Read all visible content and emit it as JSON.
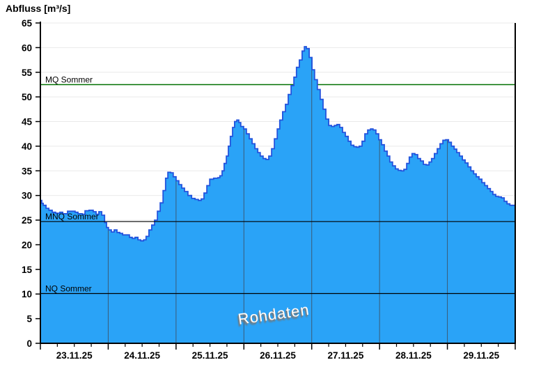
{
  "title": "Abfluss [m³/s]",
  "watermark": "Rohdaten",
  "chart_data": {
    "type": "area",
    "title": "Abfluss [m³/s]",
    "ylabel": "Abfluss [m³/s]",
    "xlabel": "",
    "ylim": [
      0,
      65
    ],
    "y_tick_step": 5,
    "y_ticks": [
      0,
      5,
      10,
      15,
      20,
      25,
      30,
      35,
      40,
      45,
      50,
      55,
      60,
      65
    ],
    "x_day_labels": [
      "23.11.25",
      "24.11.25",
      "25.11.25",
      "26.11.25",
      "27.11.25",
      "28.11.25",
      "29.11.25"
    ],
    "x_range_hours": [
      0,
      168
    ],
    "minor_tick_hours": 6,
    "grid": true,
    "legend_position": "none",
    "series_name": "Rohdaten",
    "reference_lines": [
      {
        "label": "MQ Sommer",
        "value": 52.5,
        "color": "#007000",
        "layer": "below"
      },
      {
        "label": "MNQ Sommer",
        "value": 24.7,
        "color": "#000000",
        "layer": "above"
      },
      {
        "label": "NQ Sommer",
        "value": 10.1,
        "color": "#000000",
        "layer": "above"
      }
    ],
    "colors": {
      "fill": "#2aa3f7",
      "stroke": "#2353dd",
      "grid_horizontal": "#e9e9e9",
      "day_gridline_on_fill": "#3a5a76",
      "axis": "#000000",
      "text": "#000000",
      "watermark_text": "#ffffff"
    },
    "points_hour_value": [
      [
        0,
        29.0
      ],
      [
        0.5,
        28.4
      ],
      [
        1,
        28.0
      ],
      [
        2,
        27.4
      ],
      [
        3,
        27.0
      ],
      [
        4.2,
        26.6
      ],
      [
        5.4,
        26.4
      ],
      [
        6.9,
        26.6
      ],
      [
        7.9,
        26.3
      ],
      [
        9.6,
        26.8
      ],
      [
        11.3,
        26.8
      ],
      [
        12.3,
        26.6
      ],
      [
        13.3,
        26.3
      ],
      [
        14.8,
        26.2
      ],
      [
        15.8,
        26.9
      ],
      [
        17.2,
        27.0
      ],
      [
        18.7,
        26.7
      ],
      [
        19.7,
        26.2
      ],
      [
        20.7,
        26.7
      ],
      [
        21.7,
        26.0
      ],
      [
        22.7,
        24.5
      ],
      [
        23.4,
        23.5
      ],
      [
        24.1,
        23.0
      ],
      [
        25.1,
        22.6
      ],
      [
        26.1,
        23.0
      ],
      [
        27.1,
        22.5
      ],
      [
        28.1,
        22.3
      ],
      [
        29.1,
        22.0
      ],
      [
        30.5,
        22.0
      ],
      [
        31.5,
        21.5
      ],
      [
        32.5,
        21.3
      ],
      [
        33.5,
        21.5
      ],
      [
        34.5,
        21.0
      ],
      [
        35.5,
        20.8
      ],
      [
        36.5,
        21.0
      ],
      [
        37.4,
        21.7
      ],
      [
        38.4,
        23.0
      ],
      [
        39.4,
        24.0
      ],
      [
        40.4,
        25.0
      ],
      [
        41.4,
        26.8
      ],
      [
        42.4,
        28.5
      ],
      [
        43.4,
        31.0
      ],
      [
        44.3,
        33.5
      ],
      [
        45.1,
        34.7
      ],
      [
        46.1,
        34.6
      ],
      [
        47,
        33.8
      ],
      [
        48,
        33.0
      ],
      [
        49,
        32.2
      ],
      [
        50,
        31.5
      ],
      [
        51,
        30.8
      ],
      [
        52.2,
        30.0
      ],
      [
        53.5,
        29.4
      ],
      [
        54.7,
        29.2
      ],
      [
        55.9,
        29.0
      ],
      [
        56.9,
        29.3
      ],
      [
        57.9,
        30.5
      ],
      [
        58.9,
        32.0
      ],
      [
        59.9,
        33.3
      ],
      [
        61.3,
        33.5
      ],
      [
        62.8,
        33.6
      ],
      [
        63.5,
        34.0
      ],
      [
        64.3,
        35.0
      ],
      [
        65,
        36.5
      ],
      [
        65.8,
        38.0
      ],
      [
        66.5,
        40.0
      ],
      [
        67.2,
        42.0
      ],
      [
        68,
        43.8
      ],
      [
        68.7,
        45.0
      ],
      [
        69.5,
        45.3
      ],
      [
        70.2,
        44.8
      ],
      [
        70.9,
        44.0
      ],
      [
        71.9,
        43.5
      ],
      [
        72.9,
        42.5
      ],
      [
        73.9,
        41.5
      ],
      [
        74.9,
        40.5
      ],
      [
        75.9,
        39.5
      ],
      [
        76.9,
        38.7
      ],
      [
        77.8,
        38.0
      ],
      [
        78.8,
        37.5
      ],
      [
        79.8,
        37.3
      ],
      [
        80.8,
        38.0
      ],
      [
        81.8,
        39.5
      ],
      [
        82.8,
        41.5
      ],
      [
        83.8,
        43.5
      ],
      [
        84.7,
        45.3
      ],
      [
        85.7,
        47.0
      ],
      [
        86.7,
        48.5
      ],
      [
        87.7,
        50.5
      ],
      [
        88.7,
        52.3
      ],
      [
        89.7,
        54.0
      ],
      [
        90.6,
        56.0
      ],
      [
        91.6,
        57.5
      ],
      [
        92.6,
        59.3
      ],
      [
        93.4,
        60.2
      ],
      [
        94.1,
        59.8
      ],
      [
        95.1,
        58.0
      ],
      [
        96.1,
        55.5
      ],
      [
        97,
        53.5
      ],
      [
        98,
        51.5
      ],
      [
        99,
        49.5
      ],
      [
        100,
        47.5
      ],
      [
        101,
        45.5
      ],
      [
        102,
        44.2
      ],
      [
        103,
        44.0
      ],
      [
        104,
        44.2
      ],
      [
        104.9,
        44.4
      ],
      [
        105.9,
        43.8
      ],
      [
        106.9,
        42.8
      ],
      [
        107.9,
        42.0
      ],
      [
        108.9,
        41.0
      ],
      [
        109.9,
        40.2
      ],
      [
        110.9,
        39.9
      ],
      [
        111.8,
        39.8
      ],
      [
        112.8,
        40.0
      ],
      [
        113.8,
        41.0
      ],
      [
        114.8,
        42.5
      ],
      [
        115.8,
        43.3
      ],
      [
        116.8,
        43.5
      ],
      [
        117.7,
        43.3
      ],
      [
        118.7,
        42.5
      ],
      [
        119.7,
        41.3
      ],
      [
        120.7,
        40.3
      ],
      [
        121.7,
        39.0
      ],
      [
        122.7,
        38.0
      ],
      [
        123.6,
        36.8
      ],
      [
        124.6,
        36.0
      ],
      [
        125.6,
        35.4
      ],
      [
        126.6,
        35.1
      ],
      [
        127.6,
        35.0
      ],
      [
        128.6,
        35.3
      ],
      [
        129.6,
        36.5
      ],
      [
        130.5,
        37.8
      ],
      [
        131.5,
        38.5
      ],
      [
        132.5,
        38.3
      ],
      [
        133.5,
        37.5
      ],
      [
        134.5,
        37.0
      ],
      [
        135.5,
        36.3
      ],
      [
        136.5,
        36.2
      ],
      [
        137.5,
        36.8
      ],
      [
        138.4,
        37.5
      ],
      [
        139.4,
        38.5
      ],
      [
        140.4,
        39.5
      ],
      [
        141.4,
        40.5
      ],
      [
        142.4,
        41.2
      ],
      [
        143.4,
        41.3
      ],
      [
        144.4,
        40.8
      ],
      [
        145.4,
        40.0
      ],
      [
        146.4,
        39.4
      ],
      [
        147.3,
        38.7
      ],
      [
        148.3,
        38.0
      ],
      [
        149.3,
        37.2
      ],
      [
        150.3,
        36.6
      ],
      [
        151.3,
        35.8
      ],
      [
        152.3,
        35.0
      ],
      [
        153.3,
        34.4
      ],
      [
        154.2,
        33.8
      ],
      [
        155.2,
        33.3
      ],
      [
        156.2,
        32.6
      ],
      [
        157.2,
        32.0
      ],
      [
        158.2,
        31.4
      ],
      [
        159.2,
        30.8
      ],
      [
        160.1,
        30.2
      ],
      [
        161.1,
        29.8
      ],
      [
        162.1,
        29.7
      ],
      [
        163.1,
        29.5
      ],
      [
        164.1,
        28.8
      ],
      [
        165.1,
        28.3
      ],
      [
        166.1,
        28.0
      ],
      [
        167.1,
        28.0
      ],
      [
        168,
        28.3
      ]
    ]
  }
}
